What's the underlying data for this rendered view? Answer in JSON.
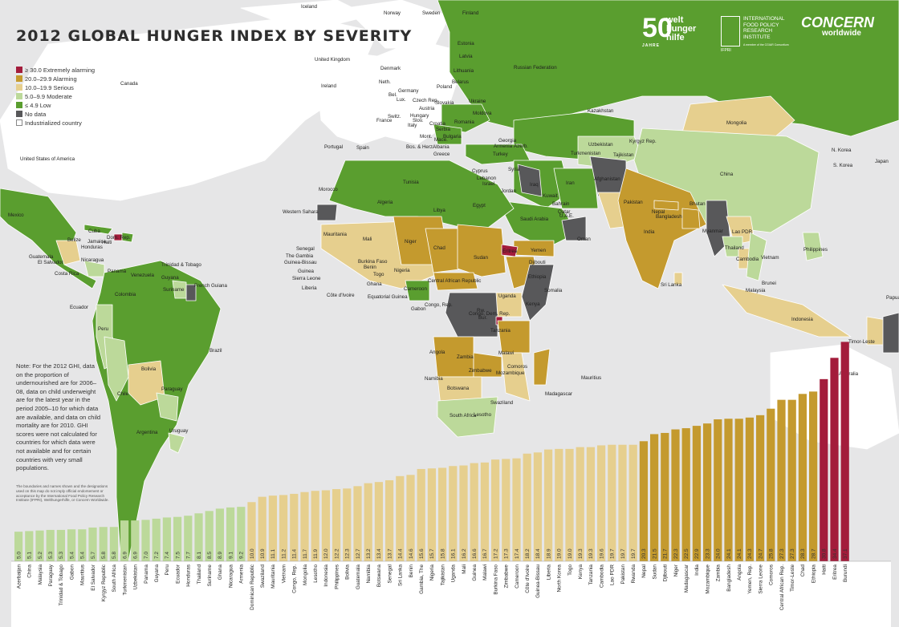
{
  "title": "2012 GLOBAL HUNGER INDEX BY SEVERITY",
  "legend": [
    {
      "label": "≥ 30.0 Extremely alarming",
      "color": "#a31c3b"
    },
    {
      "label": "20.0–29.9 Alarming",
      "color": "#c49a2e"
    },
    {
      "label": "10.0–19.9 Serious",
      "color": "#e6cf8e"
    },
    {
      "label": "5.0–9.9 Moderate",
      "color": "#bcd99a"
    },
    {
      "label": "≤ 4.9 Low",
      "color": "#5a9e2f"
    },
    {
      "label": "No data",
      "color": "#58585a"
    },
    {
      "label": "Industrialized country",
      "color": "#ffffff"
    }
  ],
  "note": "Note: For the 2012 GHI, data on the proportion of undernourished are for 2006–08, data on child underweight are for the latest year in the period 2005–10 for which data are available, and data on child mortality are for 2010. GHI scores were not calculated for countries for which data were not available and for certain countries with very small populations.",
  "disclaimer": "The boundaries and names shown and the designations used on this map do not imply official endorsement or acceptance by the International Food Policy Research Institute (IFPRI), Welthungerhilfe, or Concern Worldwide.",
  "logos": {
    "whh_number": "50",
    "whh_name": "welt hunger hilfe",
    "whh_tag": "JAHRE",
    "ifpri_name": "INTERNATIONAL FOOD POLICY RESEARCH INSTITUTE",
    "ifpri_short": "IFPRI",
    "ifpri_tag": "A member of the CGIAR Consortium",
    "concern_1": "CONCERN",
    "concern_2": "worldwide"
  },
  "colors": {
    "ocean": "#e6e6e7",
    "low": "#5a9e2f",
    "moderate": "#bcd99a",
    "serious": "#e6cf8e",
    "alarming": "#c49a2e",
    "extreme": "#a31c3b",
    "nodata": "#58585a",
    "industrialized": "#ffffff"
  },
  "map_labels": [
    "Iceland",
    "Norway",
    "Sweden",
    "Finland",
    "Estonia",
    "Latvia",
    "Lithuania",
    "Belarus",
    "Russian Federation",
    "United Kingdom",
    "Denmark",
    "Ireland",
    "Neth.",
    "Germany",
    "Poland",
    "Bel.",
    "Lux.",
    "Czech Rep.",
    "Slovakia",
    "Austria",
    "Hungary",
    "Slov.",
    "Croatia",
    "Switz.",
    "France",
    "Italy",
    "Ukraine",
    "Moldova",
    "Romania",
    "Serbia",
    "Bulgaria",
    "Mont.",
    "Mace.",
    "Albania",
    "Bos. & Herz.",
    "Greece",
    "Portugal",
    "Spain",
    "Georgia",
    "Armenia",
    "Azerb.",
    "Kazakhstan",
    "Mongolia",
    "Uzbekistan",
    "Kyrgyz Rep.",
    "Turkmenistan",
    "Tajikistan",
    "Turkey",
    "Cyprus",
    "Lebanon",
    "Israel",
    "Syria",
    "Iraq",
    "Jordan",
    "Kuwait",
    "Iran",
    "Afghanistan",
    "Bahrain",
    "Qatar",
    "U.A.E.",
    "Saudi Arabia",
    "Oman",
    "Yemen",
    "Pakistan",
    "India",
    "Nepal",
    "Bhutan",
    "Bangladesh",
    "China",
    "N. Korea",
    "S. Korea",
    "Japan",
    "Myanmar",
    "Lao PDR",
    "Thailand",
    "Cambodia",
    "Vietnam",
    "Philippines",
    "Sri Lanka",
    "Brunei",
    "Malaysia",
    "Indonesia",
    "Papua New Guinea",
    "Timor-Leste",
    "Australia",
    "Canada",
    "United States of America",
    "Mexico",
    "Cuba",
    "Dom. Rep.",
    "Haiti",
    "Jamaica",
    "Belize",
    "Honduras",
    "Guatemala",
    "El Salvador",
    "Nicaragua",
    "Costa Rica",
    "Panama",
    "Trinidad & Tobago",
    "Venezuela",
    "Guyana",
    "Suriname",
    "French Guiana",
    "Colombia",
    "Ecuador",
    "Peru",
    "Brazil",
    "Bolivia",
    "Paraguay",
    "Chile",
    "Argentina",
    "Uruguay",
    "Morocco",
    "Algeria",
    "Tunisia",
    "Libya",
    "Egypt",
    "Western Sahara",
    "Mauritania",
    "Mali",
    "Niger",
    "Chad",
    "Sudan",
    "Eritrea",
    "Djibouti",
    "Ethiopia",
    "Somalia",
    "Senegal",
    "The Gambia",
    "Guinea-Bissau",
    "Guinea",
    "Sierra Leone",
    "Liberia",
    "Côte d'Ivoire",
    "Burkina Faso",
    "Ghana",
    "Togo",
    "Benin",
    "Nigeria",
    "Cameroon",
    "Central African Republic",
    "Equatorial Guinea",
    "Gabon",
    "Congo, Rep.",
    "Congo, Dem. Rep.",
    "Uganda",
    "Kenya",
    "Rw.",
    "Bur.",
    "Tanzania",
    "Angola",
    "Zambia",
    "Malawi",
    "Mozambique",
    "Zimbabwe",
    "Namibia",
    "Botswana",
    "South Africa",
    "Lesotho",
    "Swaziland",
    "Comoros",
    "Madagascar",
    "Mauritius"
  ],
  "chart_data": {
    "type": "bar",
    "title": "",
    "xlabel": "",
    "ylabel": "",
    "ylim": [
      0,
      40
    ],
    "categories": [
      "Azerbaijan",
      "China",
      "Malaysia",
      "Paraguay",
      "Trinidad & Tobago",
      "Gabon",
      "Mauritius",
      "El Salvador",
      "Kyrgyz Republic",
      "South Africa",
      "Turkmenistan",
      "Uzbekistan",
      "Panama",
      "Guyana",
      "Peru",
      "Ecuador",
      "Honduras",
      "Thailand",
      "Suriname",
      "Ghana",
      "Nicaragua",
      "Armenia",
      "Dominican Republic",
      "Swaziland",
      "Mauritania",
      "Vietnam",
      "Congo, Rep.",
      "Mongolia",
      "Lesotho",
      "Indonesia",
      "Philippines",
      "Bolivia",
      "Guatemala",
      "Namibia",
      "Botswana",
      "Senegal",
      "Sri Lanka",
      "Benin",
      "Gambia, The",
      "Nigeria",
      "Tajikistan",
      "Uganda",
      "Mali",
      "Guinea",
      "Malawi",
      "Burkina Faso",
      "Zimbabwe",
      "Cameroon",
      "Côte d'Ivoire",
      "Guinea-Bissau",
      "Liberia",
      "North Korea",
      "Togo",
      "Kenya",
      "Tanzania",
      "Cambodia",
      "Lao PDR",
      "Pakistan",
      "Rwanda",
      "Nepal",
      "Sudan",
      "Djibouti",
      "Niger",
      "Madagascar",
      "India",
      "Mozambique",
      "Zambia",
      "Bangladesh",
      "Angola",
      "Yemen, Rep.",
      "Sierra Leone",
      "Comoros",
      "Central African Rep.",
      "Timor-Leste",
      "Chad",
      "Ethiopia",
      "Haiti",
      "Eritrea",
      "Burundi"
    ],
    "values": [
      5.0,
      5.1,
      5.2,
      5.3,
      5.3,
      5.4,
      5.4,
      5.7,
      5.8,
      5.8,
      6.9,
      6.9,
      7.0,
      7.2,
      7.4,
      7.5,
      7.7,
      8.1,
      8.5,
      8.9,
      9.1,
      9.2,
      10.0,
      10.9,
      11.1,
      11.2,
      11.4,
      11.7,
      11.9,
      12.0,
      12.2,
      12.3,
      12.7,
      13.2,
      13.4,
      13.7,
      14.4,
      14.6,
      15.6,
      15.7,
      15.8,
      16.1,
      16.2,
      16.6,
      16.7,
      17.2,
      17.3,
      17.4,
      18.2,
      18.4,
      18.9,
      19.0,
      19.0,
      19.3,
      19.3,
      19.6,
      19.7,
      19.7,
      19.7,
      20.3,
      21.5,
      21.7,
      22.3,
      22.5,
      22.9,
      23.3,
      24.0,
      24.1,
      24.1,
      24.3,
      24.7,
      25.8,
      27.3,
      27.3,
      28.3,
      28.7,
      30.8,
      34.4,
      37.1
    ]
  }
}
